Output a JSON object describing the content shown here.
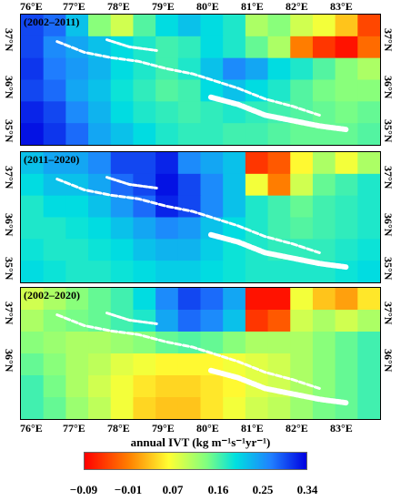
{
  "panels": [
    {
      "period": "(2002–2011)"
    },
    {
      "period": "(2011–2020)"
    },
    {
      "period": "(2002–2020)"
    }
  ],
  "lon_labels": [
    "76°E",
    "77°E",
    "78°E",
    "79°E",
    "80°E",
    "81°E",
    "82°E",
    "83°E"
  ],
  "lat_labels": [
    "37°N",
    "36°N",
    "35°N"
  ],
  "colorbar": {
    "title": "annual IVT (kg m⁻¹s⁻¹yr⁻¹)",
    "ticks": [
      "−0.09",
      "−0.01",
      "0.07",
      "0.16",
      "0.25",
      "0.34"
    ],
    "colors": [
      "#ff0000",
      "#ff8000",
      "#ffff33",
      "#80ff80",
      "#00e0e0",
      "#2080ff",
      "#0000e0"
    ]
  },
  "map_data": {
    "type": "heatmap",
    "value_range": [
      -0.09,
      0.34
    ],
    "grid_rows": 6,
    "grid_cols": 16,
    "panel_values": [
      [
        [
          0.3,
          0.28,
          0.22,
          0.12,
          0.08,
          0.15,
          0.2,
          0.22,
          0.2,
          0.18,
          0.1,
          0.12,
          0.08,
          0.06,
          0.02,
          -0.05
        ],
        [
          0.3,
          0.26,
          0.24,
          0.22,
          0.2,
          0.18,
          0.16,
          0.17,
          0.2,
          0.18,
          0.14,
          0.1,
          -0.02,
          -0.06,
          -0.08,
          -0.03
        ],
        [
          0.31,
          0.27,
          0.25,
          0.23,
          0.2,
          0.18,
          0.16,
          0.18,
          0.22,
          0.26,
          0.24,
          0.2,
          0.18,
          0.15,
          0.12,
          0.1
        ],
        [
          0.3,
          0.28,
          0.24,
          0.22,
          0.19,
          0.17,
          0.15,
          0.16,
          0.2,
          0.22,
          0.2,
          0.18,
          0.15,
          0.13,
          0.12,
          0.12
        ],
        [
          0.32,
          0.3,
          0.26,
          0.23,
          0.2,
          0.18,
          0.17,
          0.16,
          0.17,
          0.18,
          0.17,
          0.16,
          0.15,
          0.14,
          0.13,
          0.14
        ],
        [
          0.33,
          0.31,
          0.28,
          0.24,
          0.22,
          0.2,
          0.18,
          0.17,
          0.17,
          0.16,
          0.16,
          0.15,
          0.14,
          0.14,
          0.14,
          0.15
        ]
      ],
      [
        [
          0.22,
          0.24,
          0.24,
          0.26,
          0.3,
          0.3,
          0.32,
          0.26,
          0.24,
          0.22,
          -0.06,
          -0.04,
          0.05,
          0.1,
          0.06,
          0.1
        ],
        [
          0.2,
          0.22,
          0.22,
          0.24,
          0.28,
          0.3,
          0.33,
          0.3,
          0.26,
          0.22,
          0.06,
          -0.02,
          0.08,
          0.14,
          0.16,
          0.18
        ],
        [
          0.18,
          0.2,
          0.2,
          0.22,
          0.25,
          0.28,
          0.32,
          0.3,
          0.26,
          0.22,
          0.18,
          0.16,
          0.14,
          0.16,
          0.17,
          0.18
        ],
        [
          0.18,
          0.18,
          0.19,
          0.2,
          0.22,
          0.24,
          0.26,
          0.25,
          0.22,
          0.2,
          0.18,
          0.16,
          0.15,
          0.16,
          0.17,
          0.18
        ],
        [
          0.19,
          0.18,
          0.18,
          0.19,
          0.2,
          0.22,
          0.23,
          0.23,
          0.21,
          0.19,
          0.18,
          0.17,
          0.17,
          0.17,
          0.18,
          0.19
        ],
        [
          0.2,
          0.19,
          0.18,
          0.18,
          0.19,
          0.2,
          0.21,
          0.21,
          0.2,
          0.19,
          0.18,
          0.18,
          0.18,
          0.18,
          0.19,
          0.2
        ]
      ],
      [
        [
          0.08,
          0.1,
          0.12,
          0.14,
          0.16,
          0.2,
          0.26,
          0.3,
          0.28,
          0.24,
          -0.08,
          -0.08,
          0.06,
          0.02,
          0.0,
          0.04
        ],
        [
          0.1,
          0.12,
          0.13,
          0.14,
          0.16,
          0.18,
          0.24,
          0.28,
          0.26,
          0.22,
          -0.06,
          -0.04,
          0.08,
          0.1,
          0.08,
          0.1
        ],
        [
          0.12,
          0.11,
          0.1,
          0.1,
          0.11,
          0.12,
          0.14,
          0.15,
          0.14,
          0.12,
          0.1,
          0.1,
          0.1,
          0.12,
          0.14,
          0.16
        ],
        [
          0.14,
          0.12,
          0.1,
          0.09,
          0.07,
          0.06,
          0.05,
          0.05,
          0.05,
          0.06,
          0.07,
          0.08,
          0.1,
          0.12,
          0.14,
          0.16
        ],
        [
          0.16,
          0.13,
          0.1,
          0.08,
          0.06,
          0.04,
          0.03,
          0.03,
          0.04,
          0.05,
          0.07,
          0.08,
          0.1,
          0.12,
          0.14,
          0.16
        ],
        [
          0.16,
          0.14,
          0.11,
          0.09,
          0.06,
          0.03,
          0.02,
          0.02,
          0.04,
          0.06,
          0.08,
          0.09,
          0.11,
          0.13,
          0.14,
          0.16
        ]
      ]
    ]
  }
}
